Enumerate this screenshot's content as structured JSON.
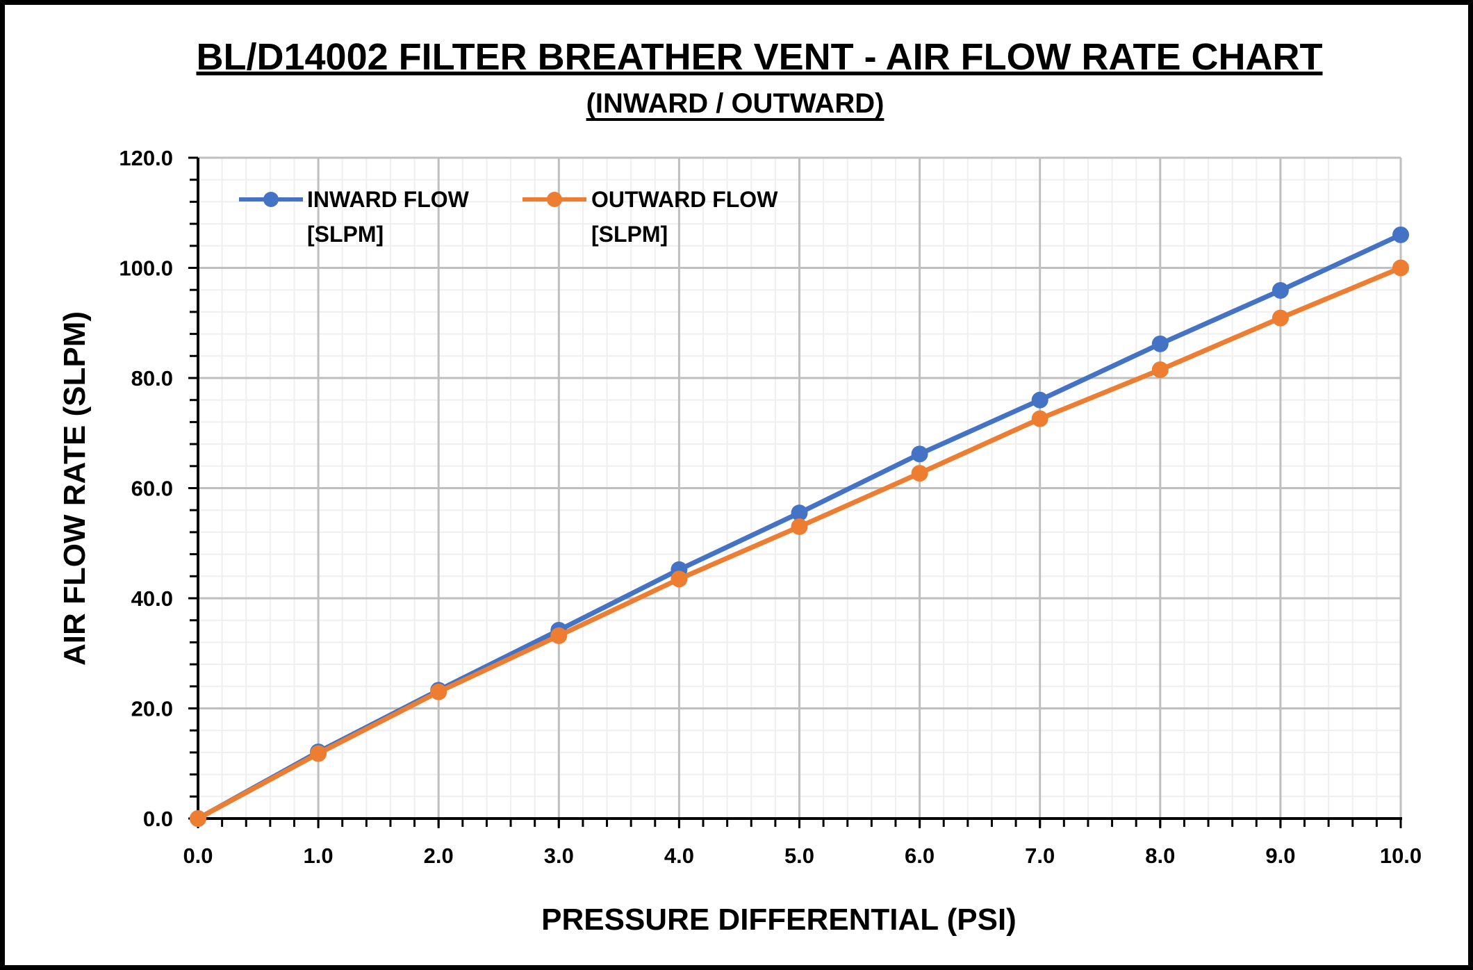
{
  "chart_data": {
    "type": "line",
    "title": "BL/D14002 FILTER BREATHER VENT - AIR FLOW RATE CHART",
    "subtitle": "(INWARD / OUTWARD)",
    "xlabel": "PRESSURE DIFFERENTIAL (PSI)",
    "ylabel": "AIR FLOW RATE (SLPM)",
    "xlim": [
      0,
      10
    ],
    "ylim": [
      0,
      120
    ],
    "x_major_step": 1,
    "x_minor_step": 0.2,
    "y_major_step": 20,
    "y_minor_step": 4,
    "x_tick_labels": [
      "0.0",
      "1.0",
      "2.0",
      "3.0",
      "4.0",
      "5.0",
      "6.0",
      "7.0",
      "8.0",
      "9.0",
      "10.0"
    ],
    "y_tick_labels": [
      "0.0",
      "20.0",
      "40.0",
      "60.0",
      "80.0",
      "100.0",
      "120.0"
    ],
    "grid": true,
    "legend_position": "top-left",
    "x": [
      0,
      1,
      2,
      3,
      4,
      5,
      6,
      7,
      8,
      9,
      10
    ],
    "series": [
      {
        "name_line1": "INWARD FLOW",
        "name_line2": "[SLPM]",
        "color": "#4472C4",
        "values": [
          0,
          12.1,
          23.3,
          34.2,
          45.2,
          55.5,
          66.2,
          76.0,
          86.2,
          95.9,
          106.0
        ]
      },
      {
        "name_line1": "OUTWARD FLOW",
        "name_line2": "[SLPM]",
        "color": "#ED7D31",
        "values": [
          0,
          11.8,
          23.0,
          33.2,
          43.5,
          53.0,
          62.7,
          72.6,
          81.5,
          90.9,
          100.0
        ]
      }
    ]
  }
}
